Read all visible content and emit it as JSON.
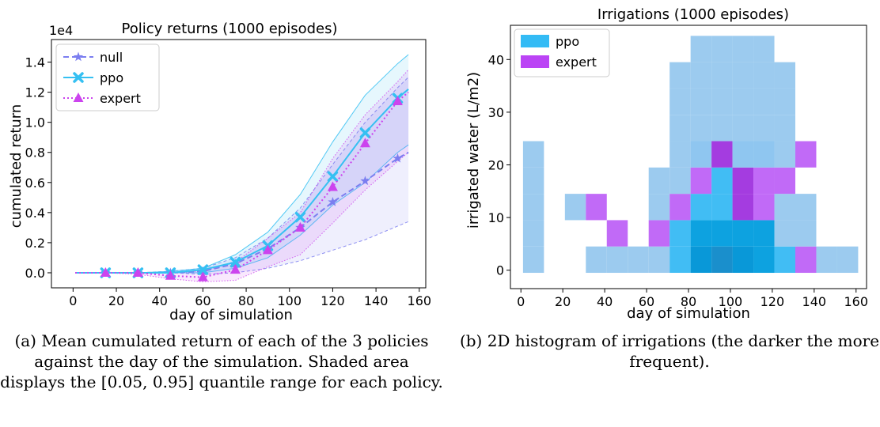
{
  "colors": {
    "null": "#7b7ef0",
    "ppo": "#35c0f2",
    "expert": "#cc44ee",
    "ppo_hist": "#33bbf5",
    "expert_hist": "#bb44f5",
    "hist_base": "#9ecae9"
  },
  "captions": {
    "left": "(a) Mean cumulated return of each of the 3 policies against the day of the simulation. Shaded area displays the [0.05, 0.95] quantile range for each policy.",
    "right": "(b) 2D histogram of irrigations (the darker the more frequent)."
  },
  "chart_data": [
    {
      "type": "line",
      "title": "Policy returns (1000 episodes)",
      "xlabel": "day of simulation",
      "ylabel": "cumulated return",
      "y_multiplier": "1e4",
      "xlim": [
        -10,
        163
      ],
      "ylim": [
        -0.1,
        1.55
      ],
      "xticks": [
        0,
        20,
        40,
        60,
        80,
        100,
        120,
        140,
        160
      ],
      "yticks": [
        0.0,
        0.2,
        0.4,
        0.6,
        0.8,
        1.0,
        1.2,
        1.4
      ],
      "legend_position": "top-left",
      "series": [
        {
          "name": "null",
          "line_style": "dashed",
          "marker": "star",
          "x": [
            1,
            15,
            30,
            45,
            60,
            75,
            90,
            105,
            120,
            135,
            150,
            155
          ],
          "mean": [
            0,
            0,
            0,
            0,
            0.01,
            0.06,
            0.16,
            0.3,
            0.47,
            0.61,
            0.76,
            0.8
          ],
          "q05": [
            0,
            0,
            0,
            0,
            -0.01,
            0,
            0.03,
            0.08,
            0.15,
            0.22,
            0.31,
            0.34
          ],
          "q95": [
            0,
            0,
            0,
            0.01,
            0.03,
            0.1,
            0.23,
            0.43,
            0.72,
            1.0,
            1.23,
            1.3
          ],
          "marker_x": [
            15,
            30,
            45,
            60,
            75,
            90,
            105,
            120,
            135,
            150
          ]
        },
        {
          "name": "ppo",
          "line_style": "solid",
          "marker": "x",
          "x": [
            1,
            15,
            30,
            45,
            60,
            75,
            90,
            105,
            120,
            135,
            150,
            155
          ],
          "mean": [
            0,
            0,
            0,
            0,
            0.02,
            0.07,
            0.18,
            0.37,
            0.64,
            0.93,
            1.16,
            1.22
          ],
          "q05": [
            0,
            0,
            0,
            0,
            0,
            0.03,
            0.1,
            0.25,
            0.45,
            0.6,
            0.8,
            0.85
          ],
          "q95": [
            0,
            0,
            0,
            0.01,
            0.03,
            0.12,
            0.27,
            0.52,
            0.87,
            1.18,
            1.39,
            1.45
          ],
          "marker_x": [
            15,
            30,
            45,
            60,
            75,
            90,
            105,
            120,
            135,
            150
          ]
        },
        {
          "name": "expert",
          "line_style": "dotted",
          "marker": "triangle",
          "x": [
            1,
            15,
            30,
            45,
            60,
            75,
            90,
            105,
            120,
            135,
            150,
            155
          ],
          "mean": [
            0,
            0,
            0,
            -0.02,
            -0.03,
            0.02,
            0.15,
            0.3,
            0.57,
            0.86,
            1.14,
            1.2
          ],
          "q05": [
            0,
            0,
            -0.01,
            -0.04,
            -0.06,
            -0.05,
            0.04,
            0.12,
            0.33,
            0.55,
            0.74,
            0.8
          ],
          "q95": [
            0,
            0,
            0,
            0,
            0.01,
            0.07,
            0.23,
            0.4,
            0.76,
            1.05,
            1.27,
            1.35
          ],
          "marker_x": [
            15,
            30,
            45,
            60,
            75,
            90,
            105,
            120,
            135,
            150
          ]
        }
      ]
    },
    {
      "type": "heatmap",
      "title": "Irrigations (1000 episodes)",
      "xlabel": "day of simulation",
      "ylabel": "irrigated water (L/m2)",
      "xlim": [
        -5,
        165
      ],
      "ylim": [
        -3,
        47
      ],
      "xticks": [
        0,
        20,
        40,
        60,
        80,
        100,
        120,
        140,
        160
      ],
      "yticks": [
        0,
        10,
        20,
        30,
        40
      ],
      "bin_width_days": 10,
      "bin_height_water": 5,
      "legend_position": "top-left",
      "legend": [
        "ppo",
        "expert"
      ],
      "cells": [
        {
          "x": 1,
          "y": 0,
          "tone": "light"
        },
        {
          "x": 1,
          "y": 5,
          "tone": "light"
        },
        {
          "x": 1,
          "y": 10,
          "tone": "light"
        },
        {
          "x": 1,
          "y": 15,
          "tone": "light"
        },
        {
          "x": 1,
          "y": 20,
          "tone": "light"
        },
        {
          "x": 21,
          "y": 10,
          "tone": "light"
        },
        {
          "x": 31,
          "y": 10,
          "tone": "expert"
        },
        {
          "x": 31,
          "y": 0,
          "tone": "light"
        },
        {
          "x": 41,
          "y": 0,
          "tone": "light"
        },
        {
          "x": 41,
          "y": 5,
          "tone": "expert"
        },
        {
          "x": 51,
          "y": 0,
          "tone": "light"
        },
        {
          "x": 61,
          "y": 0,
          "tone": "light"
        },
        {
          "x": 61,
          "y": 5,
          "tone": "expert"
        },
        {
          "x": 61,
          "y": 10,
          "tone": "light"
        },
        {
          "x": 61,
          "y": 15,
          "tone": "light"
        },
        {
          "x": 71,
          "y": 0,
          "tone": "ppo"
        },
        {
          "x": 71,
          "y": 5,
          "tone": "ppo"
        },
        {
          "x": 71,
          "y": 10,
          "tone": "expert"
        },
        {
          "x": 71,
          "y": 15,
          "tone": "light"
        },
        {
          "x": 71,
          "y": 20,
          "tone": "light"
        },
        {
          "x": 71,
          "y": 25,
          "tone": "light"
        },
        {
          "x": 71,
          "y": 30,
          "tone": "light"
        },
        {
          "x": 71,
          "y": 35,
          "tone": "light"
        },
        {
          "x": 81,
          "y": 0,
          "tone": "dark"
        },
        {
          "x": 81,
          "y": 5,
          "tone": "mid"
        },
        {
          "x": 81,
          "y": 10,
          "tone": "ppo"
        },
        {
          "x": 81,
          "y": 15,
          "tone": "expert"
        },
        {
          "x": 81,
          "y": 20,
          "tone": "light2"
        },
        {
          "x": 81,
          "y": 25,
          "tone": "light"
        },
        {
          "x": 81,
          "y": 30,
          "tone": "light"
        },
        {
          "x": 81,
          "y": 35,
          "tone": "light"
        },
        {
          "x": 81,
          "y": 40,
          "tone": "light"
        },
        {
          "x": 91,
          "y": 0,
          "tone": "darkest"
        },
        {
          "x": 91,
          "y": 5,
          "tone": "mid"
        },
        {
          "x": 91,
          "y": 10,
          "tone": "ppo"
        },
        {
          "x": 91,
          "y": 15,
          "tone": "ppo"
        },
        {
          "x": 91,
          "y": 20,
          "tone": "expert_dark"
        },
        {
          "x": 91,
          "y": 25,
          "tone": "light"
        },
        {
          "x": 91,
          "y": 30,
          "tone": "light"
        },
        {
          "x": 91,
          "y": 35,
          "tone": "light"
        },
        {
          "x": 91,
          "y": 40,
          "tone": "light"
        },
        {
          "x": 101,
          "y": 0,
          "tone": "dark"
        },
        {
          "x": 101,
          "y": 5,
          "tone": "mid"
        },
        {
          "x": 101,
          "y": 10,
          "tone": "expert_dark"
        },
        {
          "x": 101,
          "y": 15,
          "tone": "expert_dark"
        },
        {
          "x": 101,
          "y": 20,
          "tone": "light2"
        },
        {
          "x": 101,
          "y": 25,
          "tone": "light"
        },
        {
          "x": 101,
          "y": 30,
          "tone": "light"
        },
        {
          "x": 101,
          "y": 35,
          "tone": "light"
        },
        {
          "x": 101,
          "y": 40,
          "tone": "light"
        },
        {
          "x": 111,
          "y": 0,
          "tone": "mid"
        },
        {
          "x": 111,
          "y": 5,
          "tone": "mid"
        },
        {
          "x": 111,
          "y": 10,
          "tone": "expert"
        },
        {
          "x": 111,
          "y": 15,
          "tone": "expert"
        },
        {
          "x": 111,
          "y": 20,
          "tone": "light2"
        },
        {
          "x": 111,
          "y": 25,
          "tone": "light"
        },
        {
          "x": 111,
          "y": 30,
          "tone": "light"
        },
        {
          "x": 111,
          "y": 35,
          "tone": "light"
        },
        {
          "x": 111,
          "y": 40,
          "tone": "light"
        },
        {
          "x": 121,
          "y": 0,
          "tone": "ppo"
        },
        {
          "x": 121,
          "y": 5,
          "tone": "light"
        },
        {
          "x": 121,
          "y": 10,
          "tone": "light"
        },
        {
          "x": 121,
          "y": 15,
          "tone": "expert"
        },
        {
          "x": 121,
          "y": 20,
          "tone": "light"
        },
        {
          "x": 121,
          "y": 25,
          "tone": "light"
        },
        {
          "x": 121,
          "y": 30,
          "tone": "light"
        },
        {
          "x": 121,
          "y": 35,
          "tone": "light"
        },
        {
          "x": 131,
          "y": 0,
          "tone": "expert"
        },
        {
          "x": 131,
          "y": 5,
          "tone": "light"
        },
        {
          "x": 131,
          "y": 10,
          "tone": "light"
        },
        {
          "x": 131,
          "y": 20,
          "tone": "expert"
        },
        {
          "x": 141,
          "y": 0,
          "tone": "light"
        },
        {
          "x": 151,
          "y": 0,
          "tone": "light"
        }
      ]
    }
  ]
}
